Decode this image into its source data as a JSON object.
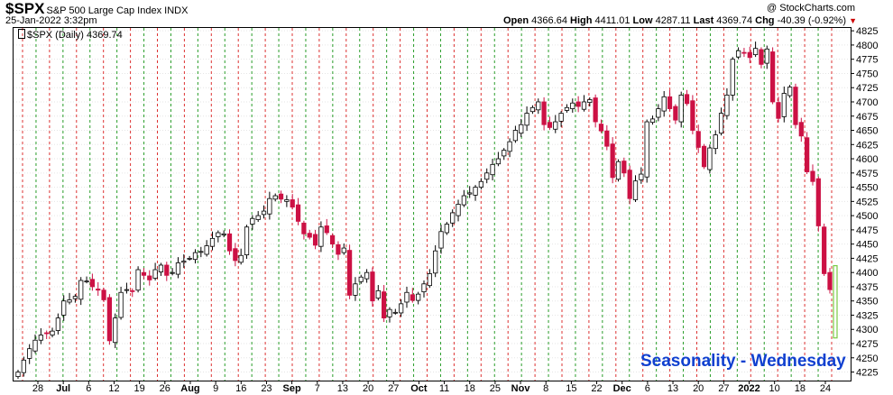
{
  "header": {
    "symbol": "$SPX",
    "name": "S&P 500 Large Cap Index INDX",
    "date": "25-Jan-2022 3:32pm",
    "open_label": "Open",
    "open": "4366.64",
    "high_label": "High",
    "high": "4411.01",
    "low_label": "Low",
    "low": "4287.11",
    "last_label": "Last",
    "last": "4369.74",
    "chg_label": "Chg",
    "chg": "-40.39 (-0.92%)",
    "copyright": "@ StockCharts.com"
  },
  "legend": "$SPX (Daily) 4369.74",
  "annotation": "Seasonality - Wednesday",
  "colors": {
    "up": "#ffffff",
    "down": "#cc1144",
    "wed_line": "#2a9d2a",
    "other_line": "#dd3333",
    "annotation": "#1040d0"
  },
  "chart_data": {
    "type": "candlestick",
    "ylim": [
      4210,
      4830
    ],
    "y_ticks": [
      4225,
      4250,
      4275,
      4300,
      4325,
      4350,
      4375,
      4400,
      4425,
      4450,
      4475,
      4500,
      4525,
      4550,
      4575,
      4600,
      4625,
      4650,
      4675,
      4700,
      4725,
      4750,
      4775,
      4800,
      4825
    ],
    "x_ticks": [
      "28",
      "Jul",
      "6",
      "12",
      "19",
      "26",
      "Aug",
      "9",
      "16",
      "23",
      "Sep",
      "7",
      "13",
      "20",
      "27",
      "Oct",
      "11",
      "18",
      "25",
      "Nov",
      "8",
      "15",
      "22",
      "Dec",
      "6",
      "13",
      "20",
      "27",
      "2022",
      "10",
      "18",
      "24"
    ],
    "vertical_lines": [
      "red",
      "green",
      "red",
      "green",
      "red",
      "green",
      "red",
      "green",
      "red",
      "green",
      "red",
      "green",
      "red",
      "green",
      "red",
      "green",
      "red",
      "green",
      "red",
      "green",
      "red",
      "green",
      "red",
      "green",
      "red",
      "green",
      "red",
      "green",
      "red",
      "green",
      "red",
      "green",
      "red",
      "green",
      "red",
      "green",
      "red",
      "green",
      "red",
      "green",
      "red",
      "green",
      "red",
      "green",
      "red",
      "green",
      "red",
      "green",
      "red",
      "green",
      "red",
      "green",
      "red",
      "green",
      "red",
      "green",
      "red",
      "green",
      "red",
      "green",
      "red"
    ],
    "closes": [
      4225,
      4246,
      4266,
      4281,
      4290,
      4293,
      4297,
      4320,
      4350,
      4352,
      4358,
      4386,
      4385,
      4375,
      4369,
      4352,
      4280,
      4320,
      4365,
      4370,
      4367,
      4405,
      4395,
      4387,
      4405,
      4413,
      4395,
      4400,
      4417,
      4420,
      4425,
      4435,
      4437,
      4447,
      4460,
      4470,
      4468,
      4438,
      4421,
      4430,
      4480,
      4495,
      4500,
      4508,
      4530,
      4535,
      4529,
      4528,
      4515,
      4490,
      4468,
      4462,
      4448,
      4480,
      4470,
      4450,
      4432,
      4443,
      4360,
      4380,
      4392,
      4400,
      4350,
      4368,
      4320,
      4335,
      4330,
      4345,
      4365,
      4351,
      4362,
      4380,
      4398,
      4438,
      4472,
      4485,
      4505,
      4520,
      4535,
      4540,
      4550,
      4560,
      4575,
      4590,
      4600,
      4615,
      4630,
      4650,
      4660,
      4680,
      4690,
      4700,
      4660,
      4655,
      4665,
      4680,
      4690,
      4698,
      4692,
      4700,
      4704,
      4665,
      4649,
      4622,
      4567,
      4595,
      4575,
      4530,
      4561,
      4573,
      4665,
      4670,
      4688,
      4709,
      4688,
      4668,
      4712,
      4697,
      4650,
      4620,
      4586,
      4619,
      4642,
      4680,
      4712,
      4775,
      4790,
      4786,
      4778,
      4794,
      4766,
      4793,
      4700,
      4671,
      4715,
      4726,
      4660,
      4640,
      4577,
      4560,
      4482,
      4398,
      4370
    ]
  }
}
